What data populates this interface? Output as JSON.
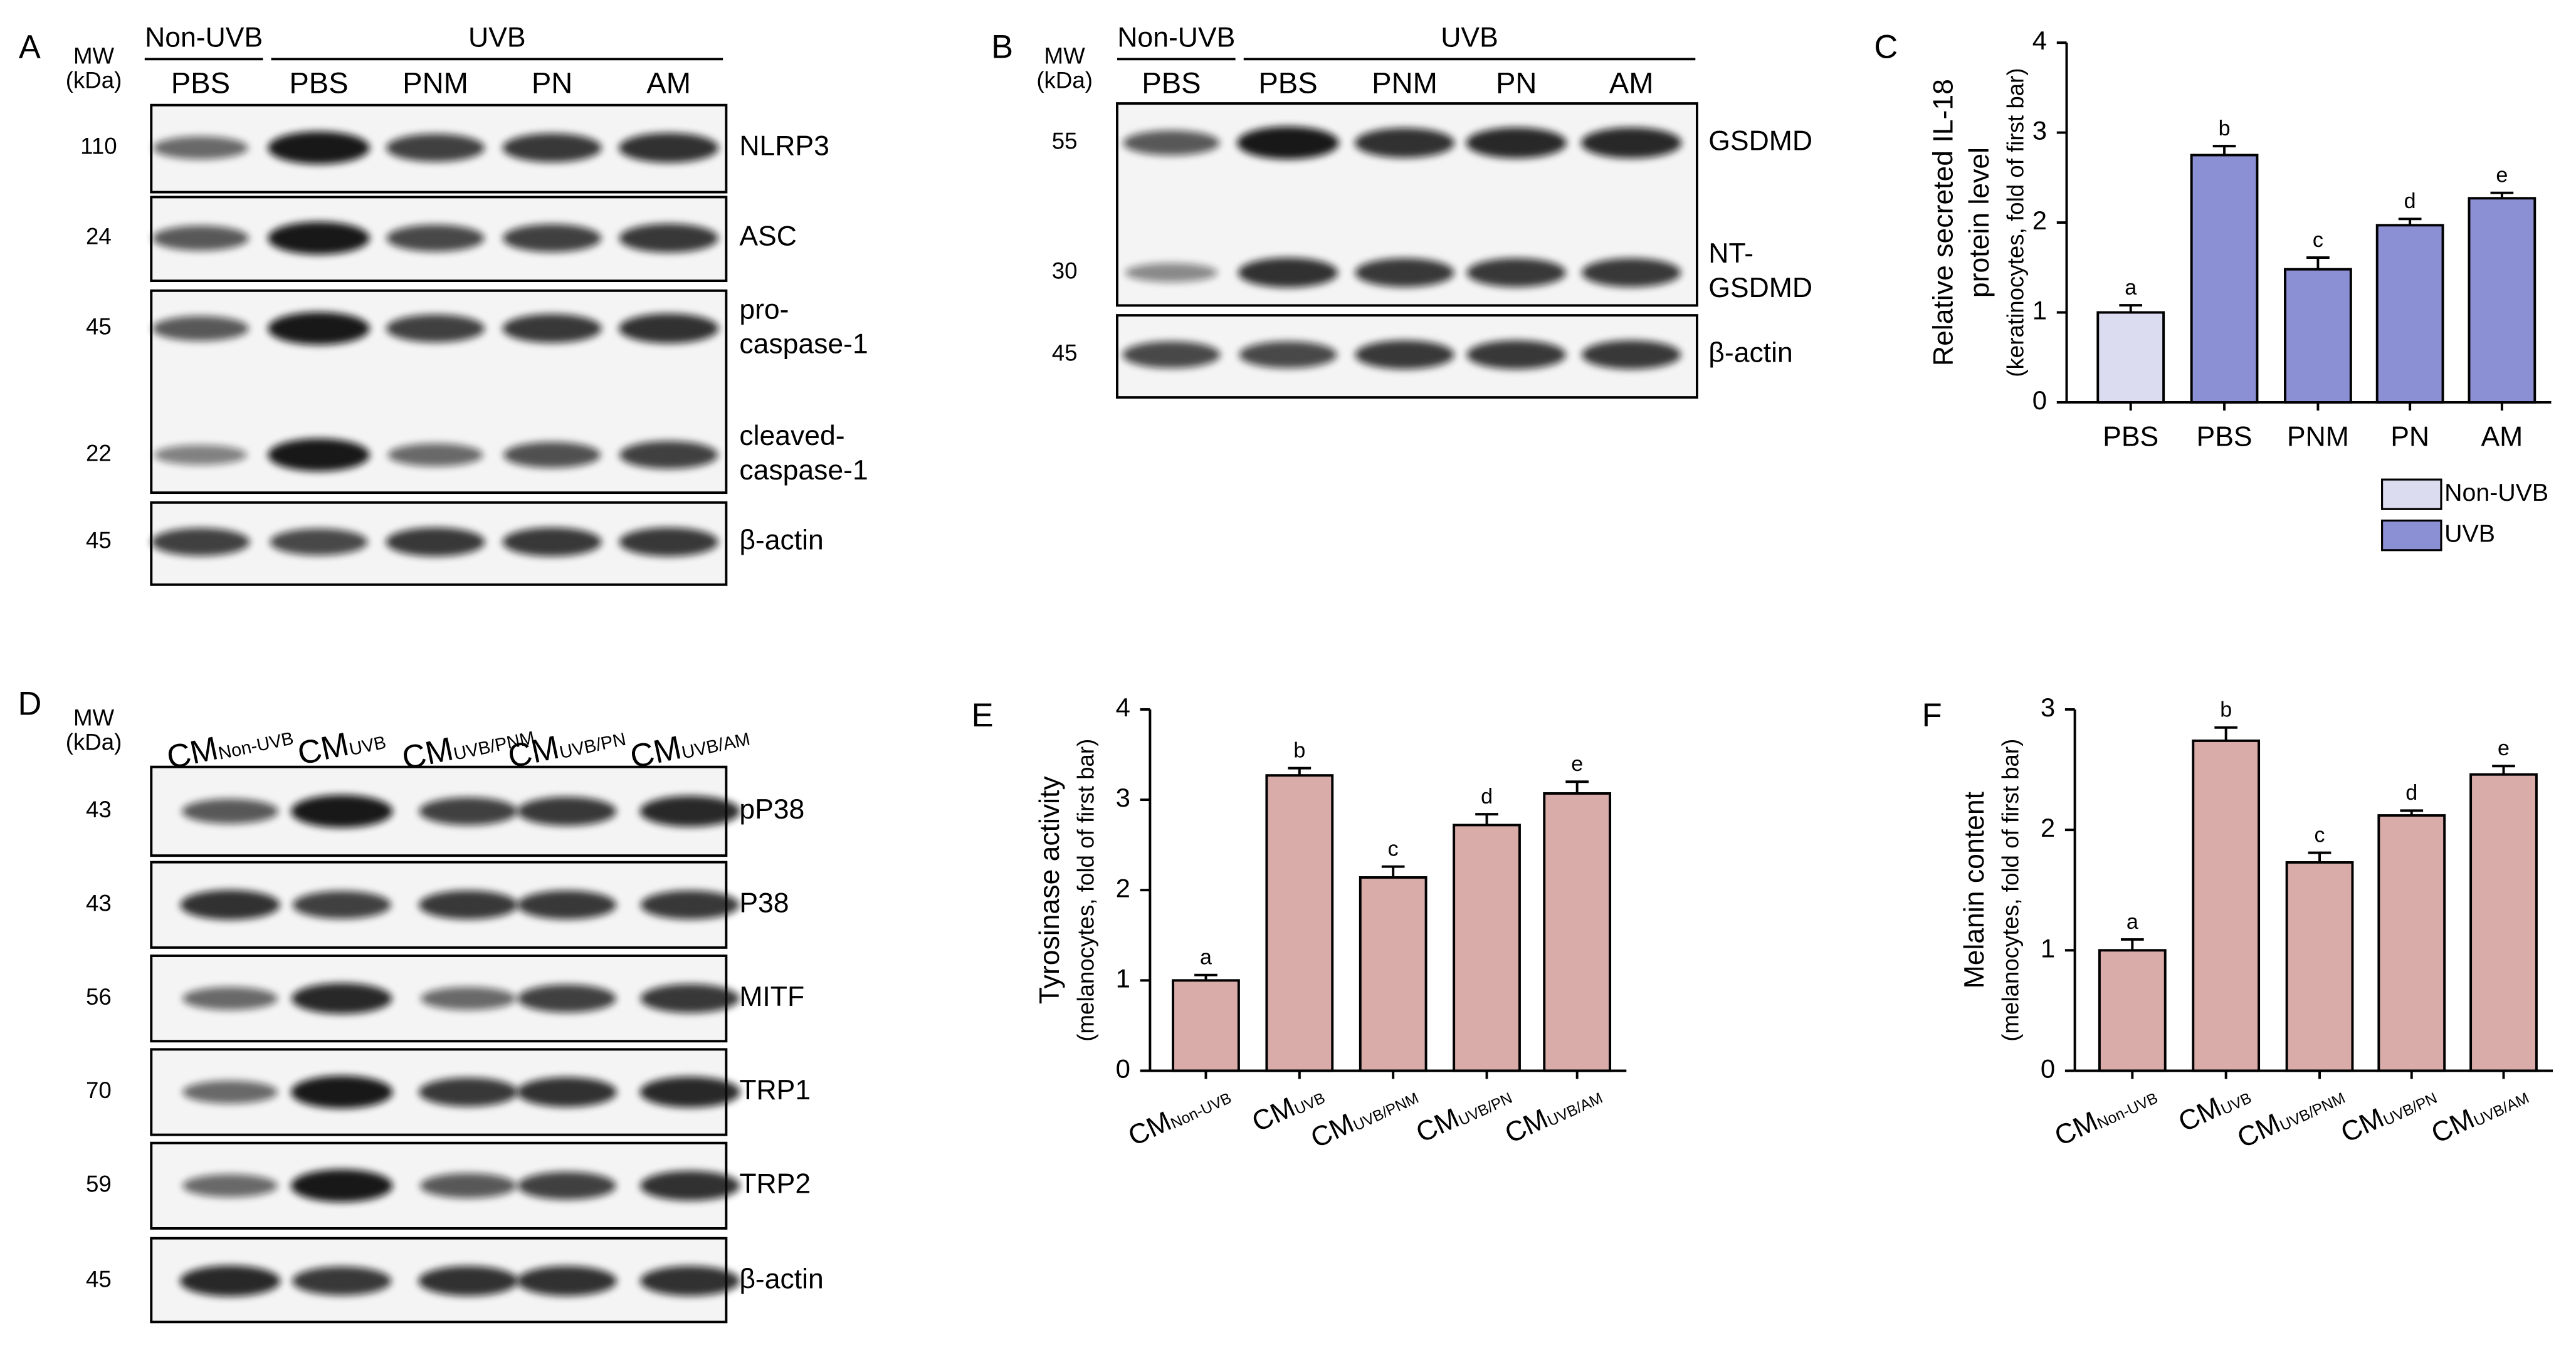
{
  "panels": [
    {
      "label": "A",
      "mw_header": [
        "MW",
        "(kDa)"
      ],
      "groups": [
        "Non-UVB",
        "UVB"
      ],
      "lanes": [
        "PBS",
        "PBS",
        "PNM",
        "PN",
        "AM"
      ],
      "rows": [
        {
          "mw": [
            110
          ],
          "names": [
            [
              "NLRP3"
            ]
          ]
        },
        {
          "mw": [
            24
          ],
          "names": [
            [
              "ASC"
            ]
          ]
        },
        {
          "mw": [
            45,
            22
          ],
          "names": [
            [
              "pro-",
              "caspase-1"
            ],
            [
              "cleaved-",
              "caspase-1"
            ]
          ]
        },
        {
          "mw": [
            45
          ],
          "names": [
            [
              "β-actin"
            ]
          ]
        }
      ]
    },
    {
      "label": "B",
      "mw_header": [
        "MW",
        "(kDa)"
      ],
      "groups": [
        "Non-UVB",
        "UVB"
      ],
      "lanes": [
        "PBS",
        "PBS",
        "PNM",
        "PN",
        "AM"
      ],
      "rows": [
        {
          "mw": [
            55,
            30
          ],
          "names": [
            [
              "GSDMD"
            ],
            [
              "NT-",
              "GSDMD"
            ]
          ]
        },
        {
          "mw": [
            45
          ],
          "names": [
            [
              "β-actin"
            ]
          ]
        }
      ]
    },
    {
      "label": "D",
      "mw_header": [
        "MW",
        "(kDa)"
      ],
      "lanes": [
        {
          "main": "CM",
          "sub": "Non-UVB"
        },
        {
          "main": "CM",
          "sub": "UVB"
        },
        {
          "main": "CM",
          "sub": "UVB/PNM"
        },
        {
          "main": "CM",
          "sub": "UVB/PN"
        },
        {
          "main": "CM",
          "sub": "UVB/AM"
        }
      ],
      "rows": [
        {
          "mw": [
            43
          ],
          "names": [
            [
              "pP38"
            ]
          ]
        },
        {
          "mw": [
            43
          ],
          "names": [
            [
              "P38"
            ]
          ]
        },
        {
          "mw": [
            56
          ],
          "names": [
            [
              "MITF"
            ]
          ]
        },
        {
          "mw": [
            70
          ],
          "names": [
            [
              "TRP1"
            ]
          ]
        },
        {
          "mw": [
            59
          ],
          "names": [
            [
              "TRP2"
            ]
          ]
        },
        {
          "mw": [
            45
          ],
          "names": [
            [
              "β-actin"
            ]
          ]
        }
      ]
    }
  ],
  "chart_data": [
    {
      "type": "bar",
      "panel": "C",
      "ylabel": [
        "Relative secreted IL-18",
        "protein level",
        "(keratinocytes, fold of first bar)"
      ],
      "categories": [
        "PBS",
        "PBS",
        "PNM",
        "PN",
        "AM"
      ],
      "series": [
        {
          "name": "Non-UVB",
          "color": "#dcdcf0",
          "values": [
            1,
            null,
            null,
            null,
            null
          ],
          "errors": [
            0.08,
            null,
            null,
            null,
            null
          ]
        },
        {
          "name": "UVB",
          "color": "#8b8fd3",
          "values": [
            null,
            2.75,
            1.48,
            1.97,
            2.27
          ],
          "errors": [
            null,
            0.1,
            0.13,
            0.07,
            0.06
          ]
        }
      ],
      "annotations": [
        "a",
        "b",
        "c",
        "d",
        "e"
      ],
      "ylim": [
        0,
        4
      ],
      "yticks": [
        0,
        1,
        2,
        3,
        4
      ]
    },
    {
      "type": "bar",
      "panel": "E",
      "ylabel": [
        "Tyrosinase activity",
        "(melanocytes, fold of first bar)"
      ],
      "categories": [
        {
          "main": "CM",
          "sub": "Non-UVB"
        },
        {
          "main": "CM",
          "sub": "UVB"
        },
        {
          "main": "CM",
          "sub": "UVB/PNM"
        },
        {
          "main": "CM",
          "sub": "UVB/PN"
        },
        {
          "main": "CM",
          "sub": "UVB/AM"
        }
      ],
      "values": [
        1,
        3.27,
        2.14,
        2.72,
        3.07
      ],
      "errors": [
        0.06,
        0.08,
        0.12,
        0.12,
        0.13
      ],
      "color": "#d9acaa",
      "annotations": [
        "a",
        "b",
        "c",
        "d",
        "e"
      ],
      "ylim": [
        0,
        4
      ],
      "yticks": [
        0,
        1,
        2,
        3,
        4
      ]
    },
    {
      "type": "bar",
      "panel": "F",
      "ylabel": [
        "Melanin content",
        "(melanocytes, fold of first bar)"
      ],
      "categories": [
        {
          "main": "CM",
          "sub": "Non-UVB"
        },
        {
          "main": "CM",
          "sub": "UVB"
        },
        {
          "main": "CM",
          "sub": "UVB/PNM"
        },
        {
          "main": "CM",
          "sub": "UVB/PN"
        },
        {
          "main": "CM",
          "sub": "UVB/AM"
        }
      ],
      "values": [
        1,
        2.74,
        1.73,
        2.12,
        2.46
      ],
      "errors": [
        0.09,
        0.11,
        0.08,
        0.04,
        0.07
      ],
      "color": "#d9acaa",
      "annotations": [
        "a",
        "b",
        "c",
        "d",
        "e"
      ],
      "ylim": [
        0,
        3
      ],
      "yticks": [
        0,
        1,
        2,
        3
      ]
    }
  ]
}
